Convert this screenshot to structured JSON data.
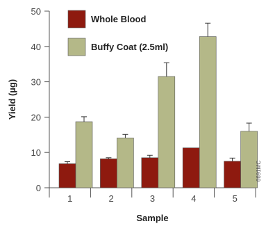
{
  "chart_data": {
    "type": "bar",
    "categories": [
      "1",
      "2",
      "3",
      "4",
      "5"
    ],
    "series": [
      {
        "name": "Whole Blood",
        "values": [
          6.8,
          8.2,
          8.5,
          11.3,
          7.5
        ],
        "errors": [
          0.6,
          0.3,
          0.7,
          0.0,
          0.9
        ],
        "color": "#8e1a0f"
      },
      {
        "name": "Buffy Coat (2.5ml)",
        "values": [
          18.7,
          14.1,
          31.5,
          42.8,
          16.0
        ],
        "errors": [
          1.4,
          1.0,
          3.9,
          3.8,
          2.3
        ],
        "color": "#b4b888"
      }
    ],
    "xlabel": "Sample",
    "ylabel": "Yield (µg)",
    "ylim": [
      0,
      50
    ],
    "yticks": [
      "0",
      "10",
      "20",
      "30",
      "40",
      "50"
    ],
    "grid": false,
    "legend": "top-left",
    "side_label": "6691MC"
  }
}
